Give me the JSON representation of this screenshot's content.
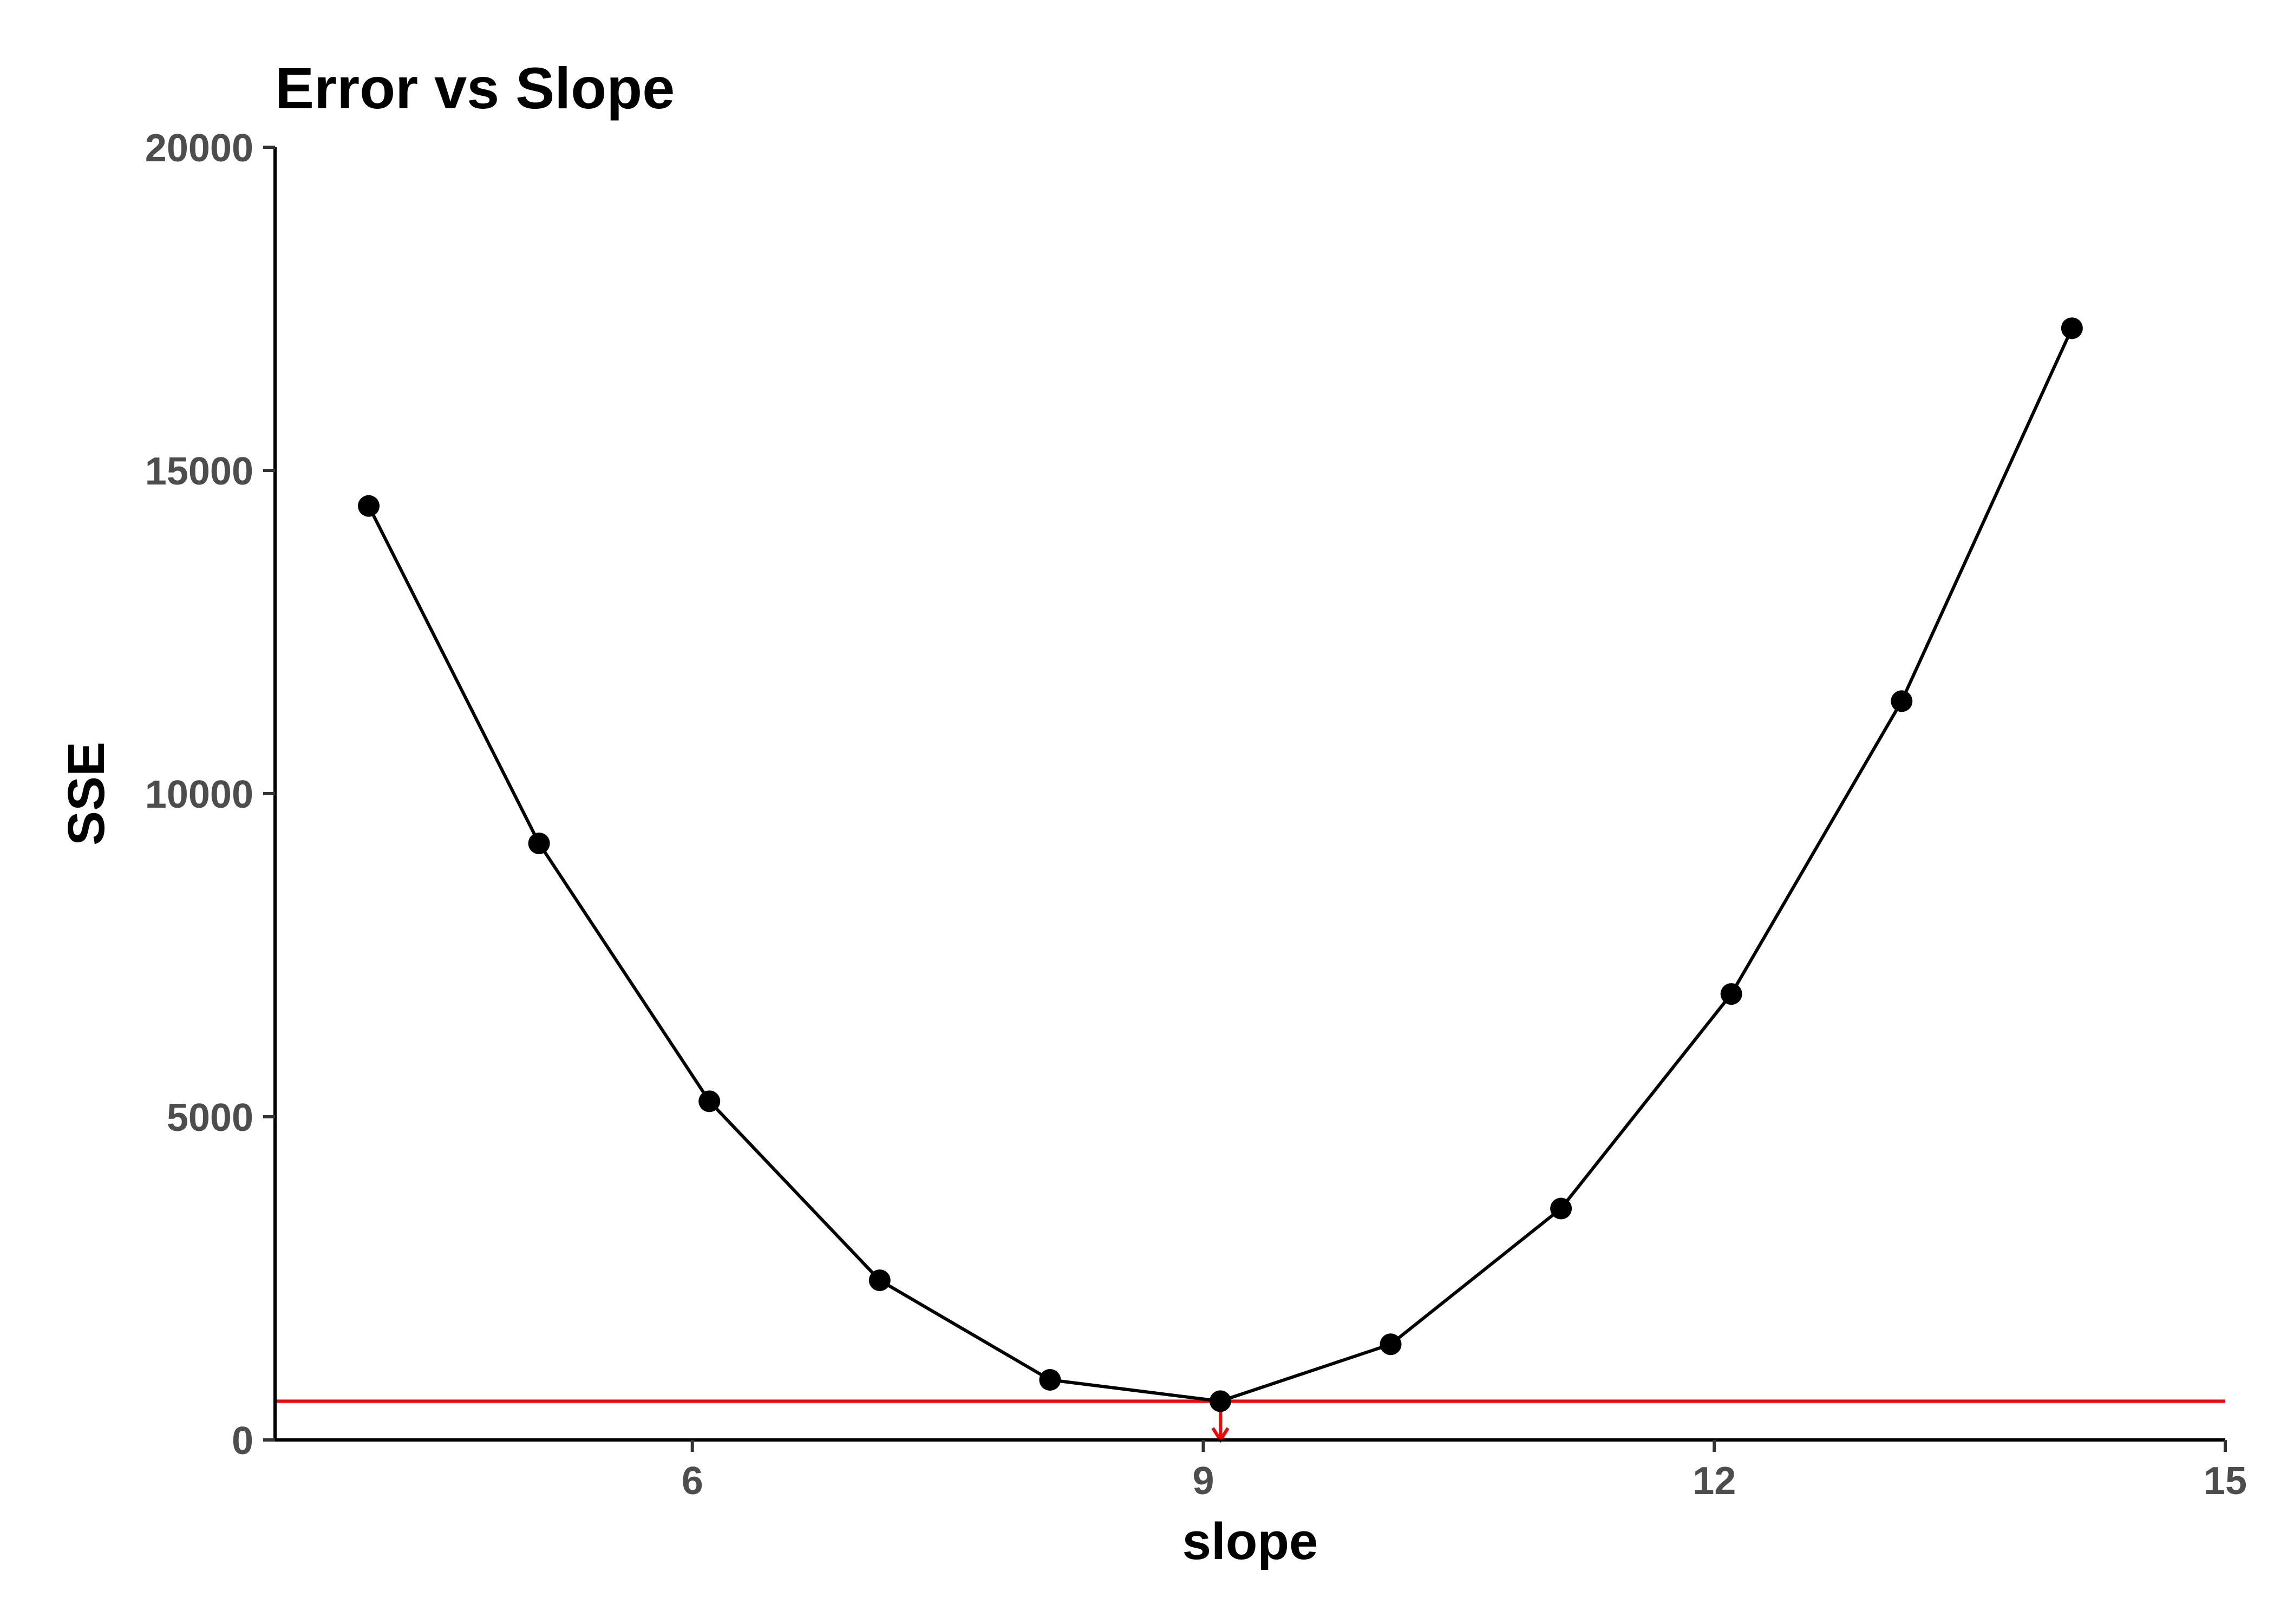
{
  "chart_data": {
    "type": "line",
    "title": "Error vs Slope",
    "xlabel": "slope",
    "ylabel": "SSE",
    "xlim": [
      3.55,
      15
    ],
    "ylim": [
      0,
      20000
    ],
    "x_ticks": [
      6,
      9,
      12,
      15
    ],
    "y_ticks": [
      0,
      5000,
      10000,
      15000,
      20000
    ],
    "grid": false,
    "series": [
      {
        "x": [
          4.1,
          5.1,
          6.1,
          7.1,
          8.1,
          9.1,
          10.1,
          11.1,
          12.1,
          13.1,
          14.1
        ],
        "y": [
          14450,
          9230,
          5240,
          2470,
          930,
          600,
          1480,
          3580,
          6900,
          11430,
          17200
        ],
        "color": "#000000"
      }
    ],
    "reference_line": {
      "y": 600,
      "color": "#ff0000"
    },
    "arrow": {
      "x": 9.1,
      "from_y": 600,
      "to_y": 0,
      "color": "#ff0000"
    }
  }
}
